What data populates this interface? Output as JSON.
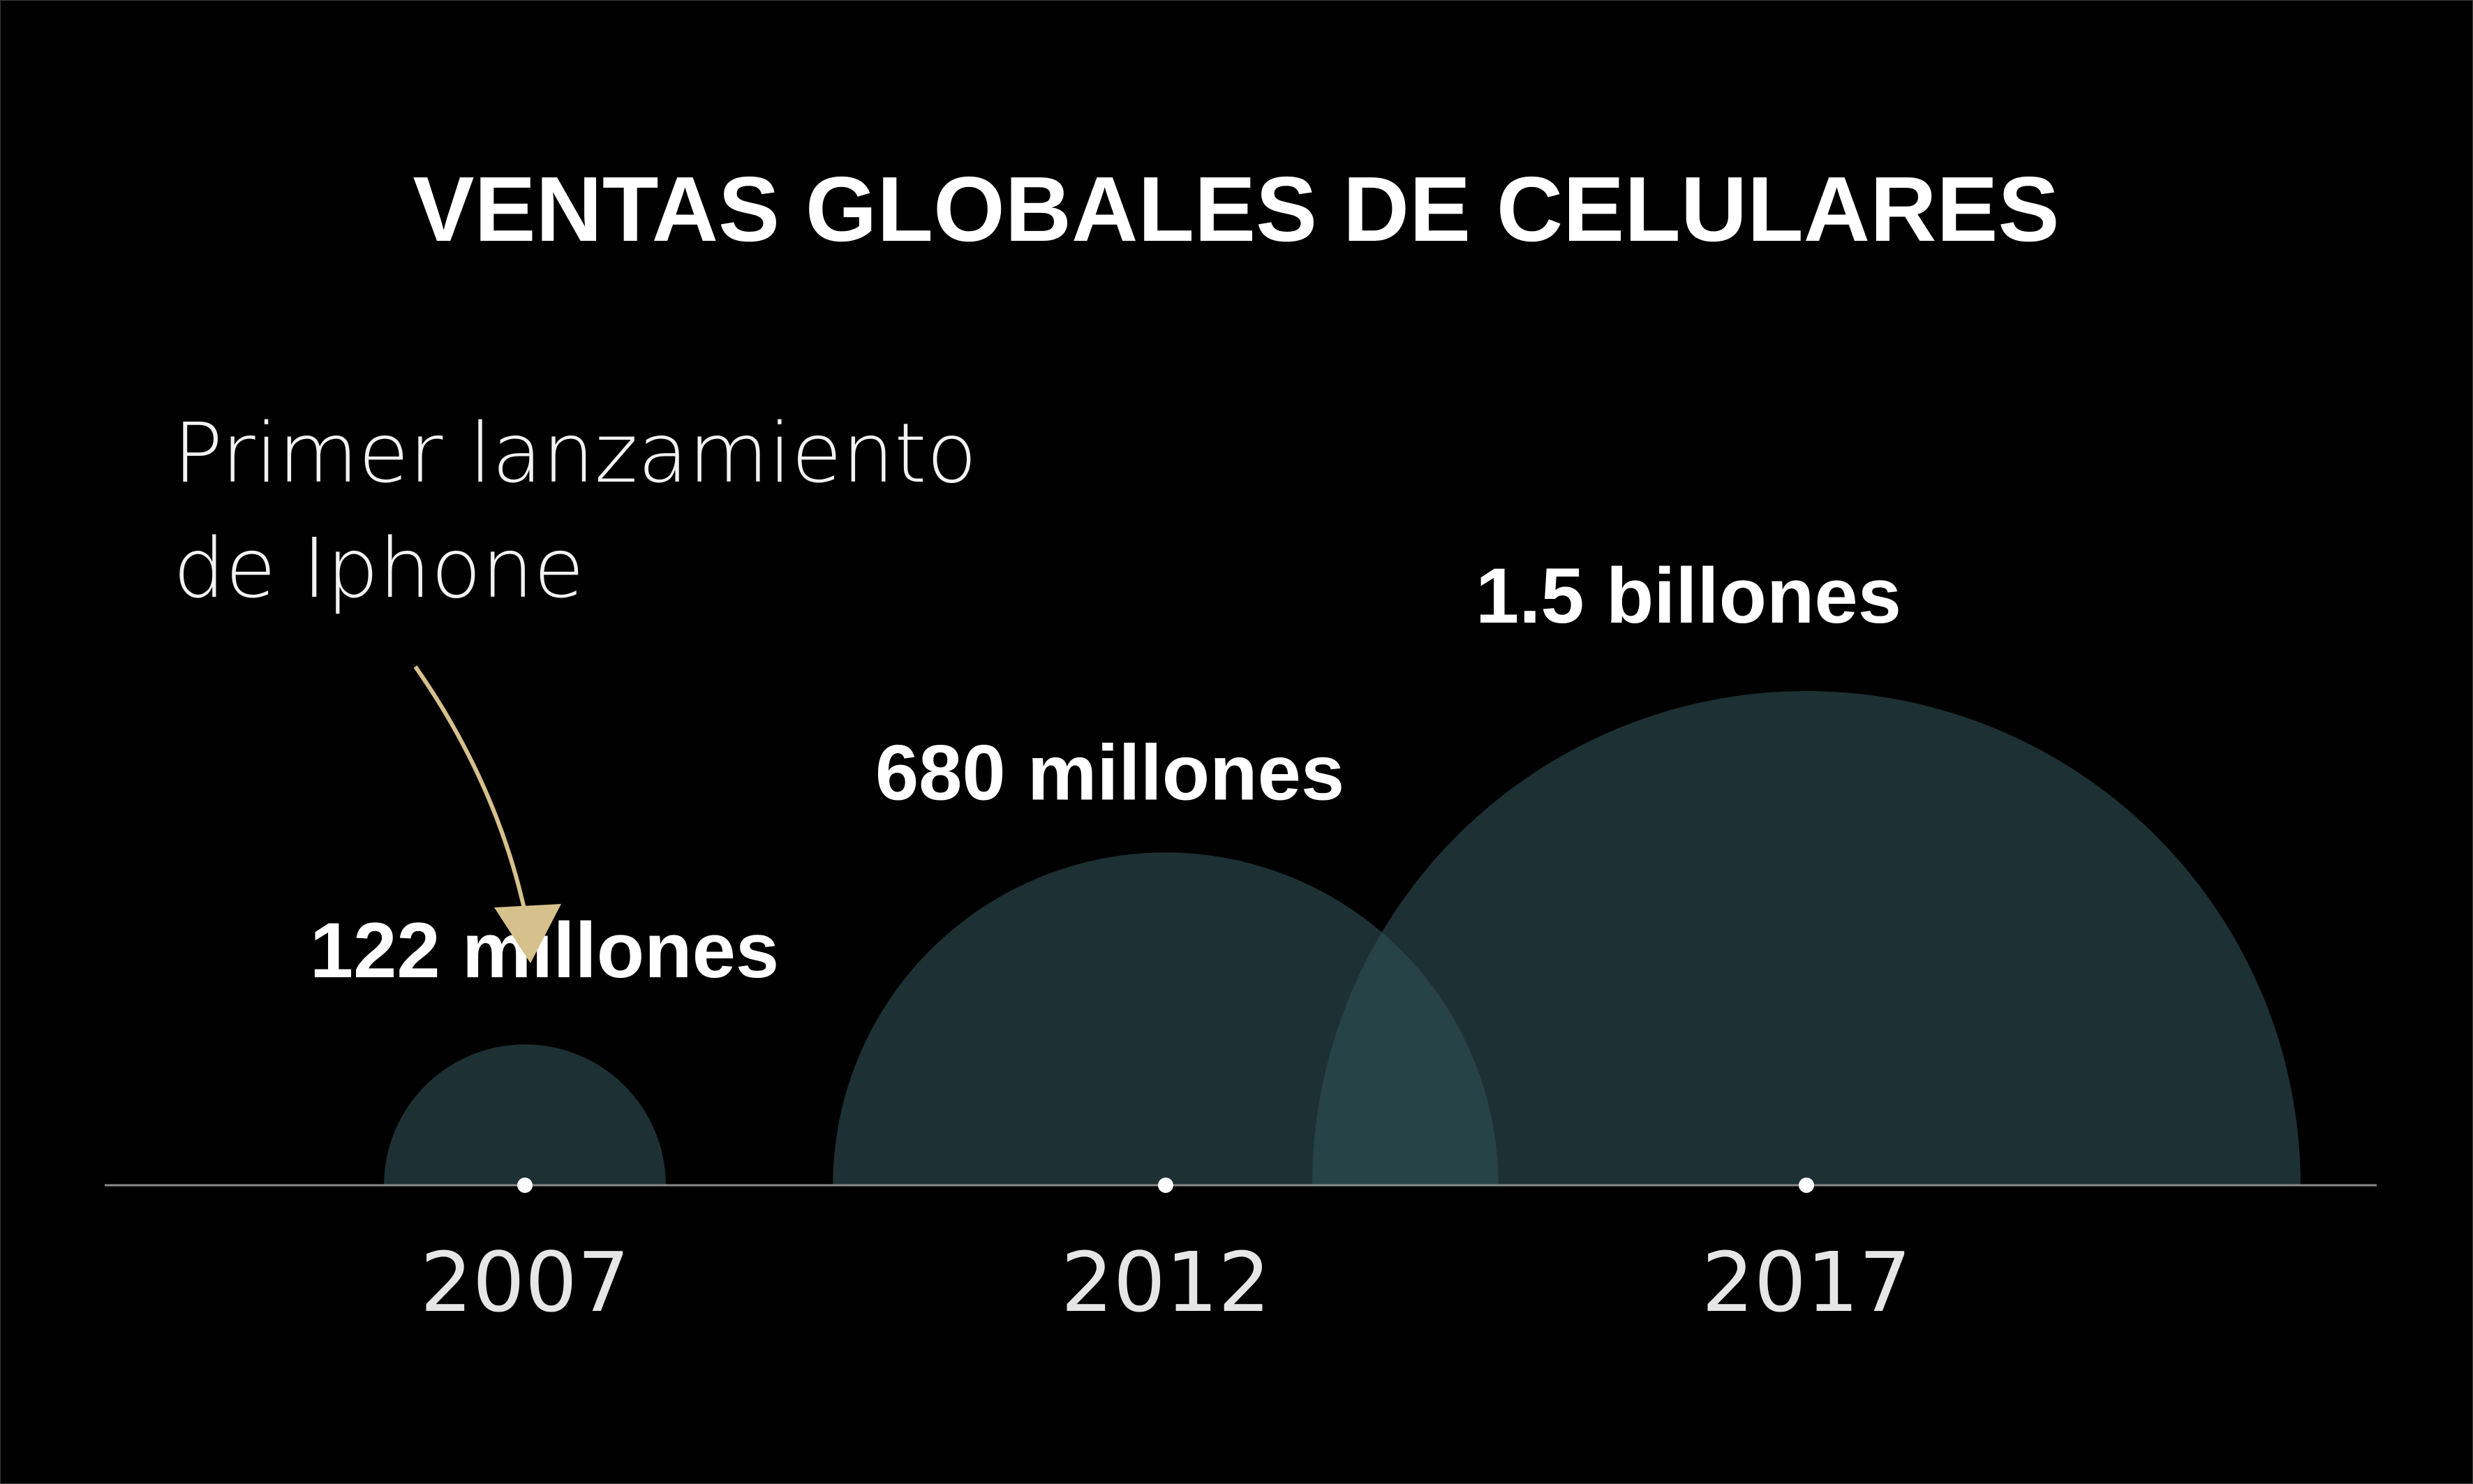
{
  "chart_data": {
    "type": "bubble",
    "title": "VENTAS GLOBALES DE CELULARES",
    "xlabel": "",
    "ylabel": "",
    "x": [
      "2007",
      "2012",
      "2017"
    ],
    "series": [
      {
        "values": [
          122,
          680,
          1500
        ],
        "labels": [
          "122 millones",
          "680 millones",
          "1.5 billones"
        ]
      }
    ],
    "annotation": {
      "lines": [
        "Primer lanzamiento",
        "de Iphone"
      ],
      "target": "2007"
    },
    "colors": {
      "background": "#000000",
      "bubble": "#2f4f54",
      "axis": "#8a8a8a",
      "arrow": "#d6c08c"
    }
  }
}
